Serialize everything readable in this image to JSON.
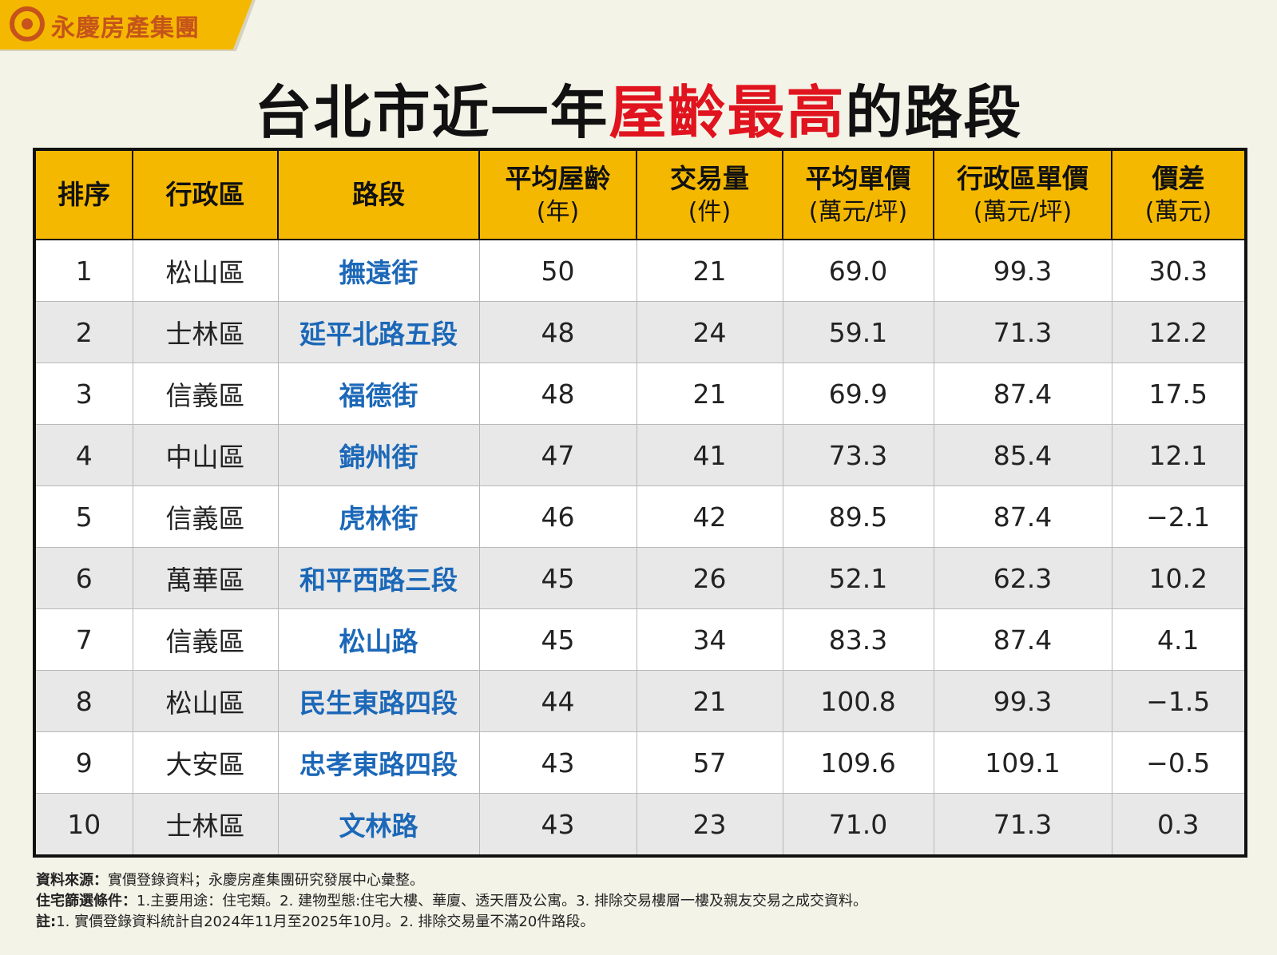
{
  "brand": "永慶房產集團",
  "title": {
    "parts": [
      {
        "text": "台北市近一年",
        "highlight": false
      },
      {
        "text": "屋齡最高",
        "highlight": true
      },
      {
        "text": "的路段",
        "highlight": false
      }
    ]
  },
  "table": {
    "headers": [
      {
        "label": "排序"
      },
      {
        "label": "行政區"
      },
      {
        "label": "路段"
      },
      {
        "label": "平均屋齡",
        "unit": "(年)"
      },
      {
        "label": "交易量",
        "unit": "(件)"
      },
      {
        "label": "平均單價",
        "unit": "(萬元/坪)"
      },
      {
        "label": "行政區單價",
        "unit": "(萬元/坪)"
      },
      {
        "label": "價差",
        "unit": "(萬元)"
      }
    ],
    "rows": [
      [
        "1",
        "松山區",
        "撫遠街",
        "50",
        "21",
        "69.0",
        "99.3",
        "30.3"
      ],
      [
        "2",
        "士林區",
        "延平北路五段",
        "48",
        "24",
        "59.1",
        "71.3",
        "12.2"
      ],
      [
        "3",
        "信義區",
        "福德街",
        "48",
        "21",
        "69.9",
        "87.4",
        "17.5"
      ],
      [
        "4",
        "中山區",
        "錦州街",
        "47",
        "41",
        "73.3",
        "85.4",
        "12.1"
      ],
      [
        "5",
        "信義區",
        "虎林街",
        "46",
        "42",
        "89.5",
        "87.4",
        "−2.1"
      ],
      [
        "6",
        "萬華區",
        "和平西路三段",
        "45",
        "26",
        "52.1",
        "62.3",
        "10.2"
      ],
      [
        "7",
        "信義區",
        "松山路",
        "45",
        "34",
        "83.3",
        "87.4",
        "4.1"
      ],
      [
        "8",
        "松山區",
        "民生東路四段",
        "44",
        "21",
        "100.8",
        "99.3",
        "−1.5"
      ],
      [
        "9",
        "大安區",
        "忠孝東路四段",
        "43",
        "57",
        "109.6",
        "109.1",
        "−0.5"
      ],
      [
        "10",
        "士林區",
        "文林路",
        "43",
        "23",
        "71.0",
        "71.3",
        "0.3"
      ]
    ]
  },
  "notes": [
    {
      "label": "資料來源：",
      "text": "實價登錄資料；永慶房產集團研究發展中心彙整。"
    },
    {
      "label": "住宅篩選條件：",
      "text": "1.主要用途：住宅類。2. 建物型態:住宅大樓、華廈、透天厝及公寓。3. 排除交易樓層一樓及親友交易之成交資料。"
    },
    {
      "label": "註:",
      "text": "1. 實價登錄資料統計自2024年11月至2025年10月。2. 排除交易量不滿20件路段。"
    }
  ]
}
